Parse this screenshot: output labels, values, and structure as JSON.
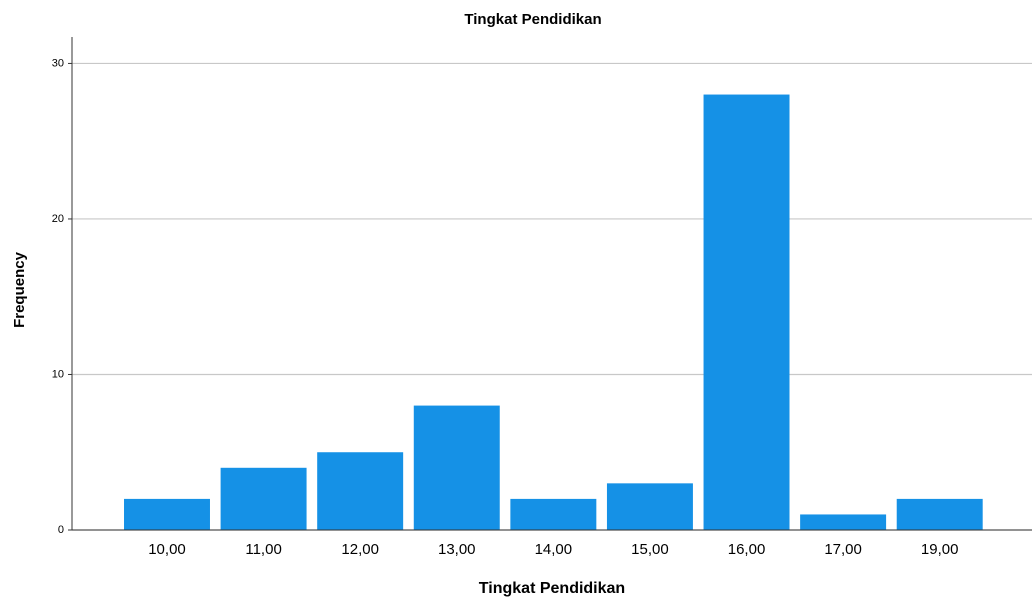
{
  "chart_data": {
    "type": "bar",
    "title": "Tingkat Pendidikan",
    "x_label": "Tingkat Pendidikan",
    "y_label": "Frequency",
    "categories": [
      "10,00",
      "11,00",
      "12,00",
      "13,00",
      "14,00",
      "15,00",
      "16,00",
      "17,00",
      "19,00"
    ],
    "values": [
      2,
      4,
      5,
      8,
      2,
      3,
      28,
      1,
      2
    ],
    "color": "#1591e6",
    "ylim": [
      0,
      31.7
    ],
    "yticks": [
      0,
      10,
      20,
      30
    ],
    "grid": true
  }
}
